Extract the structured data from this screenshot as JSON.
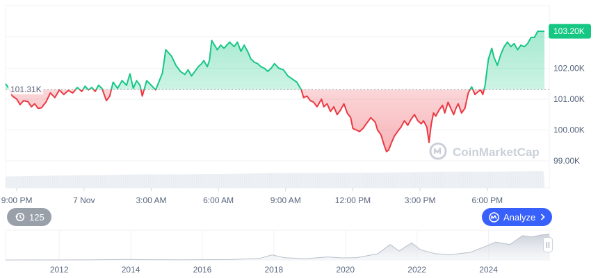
{
  "chart_data": {
    "type": "line",
    "colors": {
      "up": "#16c784",
      "down": "#ea3943",
      "axis_text": "#58667e",
      "grid": "#eff2f5",
      "brand": "#3861fb"
    },
    "baseline": {
      "value": 101.31,
      "label": "101.31K"
    },
    "current": {
      "value": 103.2,
      "label": "103.20K"
    },
    "ylim": [
      98.4,
      104.4
    ],
    "y_ticks": [
      {
        "value": 102.0,
        "label": "102.00K"
      },
      {
        "value": 101.0,
        "label": "101.00K"
      },
      {
        "value": 100.0,
        "label": "100.00K"
      },
      {
        "value": 99.0,
        "label": "99.00K"
      }
    ],
    "x_ticks": [
      {
        "t": 0.5,
        "label": "9:00 PM"
      },
      {
        "t": 3.5,
        "label": "7 Nov"
      },
      {
        "t": 6.5,
        "label": "3:00 AM"
      },
      {
        "t": 9.5,
        "label": "6:00 AM"
      },
      {
        "t": 12.5,
        "label": "9:00 AM"
      },
      {
        "t": 15.5,
        "label": "12:00 PM"
      },
      {
        "t": 18.5,
        "label": "3:00 PM"
      },
      {
        "t": 21.5,
        "label": "6:00 PM"
      }
    ],
    "x_range": [
      0,
      24.05
    ],
    "points": [
      [
        0.0,
        101.5
      ],
      [
        0.15,
        101.35
      ],
      [
        0.3,
        101.1
      ],
      [
        0.5,
        101.0
      ],
      [
        0.65,
        100.82
      ],
      [
        0.8,
        100.95
      ],
      [
        1.0,
        100.92
      ],
      [
        1.15,
        100.75
      ],
      [
        1.3,
        100.85
      ],
      [
        1.45,
        100.7
      ],
      [
        1.6,
        100.72
      ],
      [
        1.8,
        100.9
      ],
      [
        2.0,
        101.2
      ],
      [
        2.2,
        101.05
      ],
      [
        2.4,
        101.3
      ],
      [
        2.6,
        101.15
      ],
      [
        2.8,
        101.28
      ],
      [
        3.0,
        101.2
      ],
      [
        3.2,
        101.38
      ],
      [
        3.4,
        101.25
      ],
      [
        3.55,
        101.42
      ],
      [
        3.7,
        101.3
      ],
      [
        3.85,
        101.38
      ],
      [
        4.0,
        101.25
      ],
      [
        4.15,
        101.45
      ],
      [
        4.3,
        101.35
      ],
      [
        4.5,
        100.95
      ],
      [
        4.65,
        101.1
      ],
      [
        4.8,
        101.55
      ],
      [
        5.0,
        101.35
      ],
      [
        5.2,
        101.6
      ],
      [
        5.4,
        101.45
      ],
      [
        5.55,
        101.82
      ],
      [
        5.7,
        101.35
      ],
      [
        5.85,
        101.6
      ],
      [
        6.0,
        101.45
      ],
      [
        6.1,
        101.1
      ],
      [
        6.3,
        101.6
      ],
      [
        6.5,
        101.45
      ],
      [
        6.7,
        101.3
      ],
      [
        7.0,
        101.85
      ],
      [
        7.15,
        102.6
      ],
      [
        7.4,
        102.4
      ],
      [
        7.6,
        102.1
      ],
      [
        7.8,
        101.9
      ],
      [
        8.0,
        101.8
      ],
      [
        8.15,
        101.95
      ],
      [
        8.3,
        101.75
      ],
      [
        8.45,
        101.9
      ],
      [
        8.6,
        102.05
      ],
      [
        8.75,
        102.15
      ],
      [
        8.85,
        102.25
      ],
      [
        9.0,
        102.05
      ],
      [
        9.1,
        102.25
      ],
      [
        9.2,
        102.9
      ],
      [
        9.3,
        102.78
      ],
      [
        9.45,
        102.6
      ],
      [
        9.6,
        102.75
      ],
      [
        9.75,
        102.65
      ],
      [
        10.0,
        102.85
      ],
      [
        10.2,
        102.7
      ],
      [
        10.35,
        102.85
      ],
      [
        10.5,
        102.55
      ],
      [
        10.65,
        102.75
      ],
      [
        10.8,
        102.55
      ],
      [
        10.95,
        102.3
      ],
      [
        11.1,
        102.2
      ],
      [
        11.25,
        102.15
      ],
      [
        11.4,
        102.05
      ],
      [
        11.55,
        102.0
      ],
      [
        11.7,
        101.9
      ],
      [
        11.85,
        102.0
      ],
      [
        12.0,
        102.15
      ],
      [
        12.2,
        102.0
      ],
      [
        12.4,
        101.95
      ],
      [
        12.6,
        101.75
      ],
      [
        12.8,
        101.65
      ],
      [
        13.0,
        101.55
      ],
      [
        13.2,
        101.3
      ],
      [
        13.3,
        101.05
      ],
      [
        13.45,
        101.1
      ],
      [
        13.6,
        100.95
      ],
      [
        13.75,
        100.9
      ],
      [
        13.9,
        100.75
      ],
      [
        14.1,
        101.0
      ],
      [
        14.2,
        100.75
      ],
      [
        14.35,
        100.85
      ],
      [
        14.5,
        100.6
      ],
      [
        14.65,
        100.75
      ],
      [
        14.8,
        100.5
      ],
      [
        14.95,
        100.65
      ],
      [
        15.1,
        100.85
      ],
      [
        15.25,
        100.55
      ],
      [
        15.4,
        100.4
      ],
      [
        15.5,
        100.05
      ],
      [
        15.65,
        100.0
      ],
      [
        15.8,
        99.95
      ],
      [
        15.95,
        100.05
      ],
      [
        16.1,
        100.2
      ],
      [
        16.3,
        100.4
      ],
      [
        16.5,
        100.25
      ],
      [
        16.6,
        100.0
      ],
      [
        16.75,
        99.85
      ],
      [
        16.9,
        99.5
      ],
      [
        17.0,
        99.3
      ],
      [
        17.1,
        99.35
      ],
      [
        17.2,
        99.55
      ],
      [
        17.35,
        99.8
      ],
      [
        17.5,
        99.95
      ],
      [
        17.65,
        100.1
      ],
      [
        17.8,
        100.3
      ],
      [
        17.95,
        100.15
      ],
      [
        18.1,
        100.35
      ],
      [
        18.25,
        100.5
      ],
      [
        18.4,
        100.3
      ],
      [
        18.55,
        100.2
      ],
      [
        18.65,
        100.3
      ],
      [
        18.8,
        100.1
      ],
      [
        18.9,
        99.6
      ],
      [
        19.0,
        100.2
      ],
      [
        19.1,
        100.55
      ],
      [
        19.2,
        100.45
      ],
      [
        19.35,
        100.65
      ],
      [
        19.5,
        100.8
      ],
      [
        19.6,
        100.55
      ],
      [
        19.75,
        100.9
      ],
      [
        19.9,
        100.65
      ],
      [
        20.0,
        100.5
      ],
      [
        20.1,
        100.7
      ],
      [
        20.2,
        100.85
      ],
      [
        20.35,
        100.55
      ],
      [
        20.5,
        100.7
      ],
      [
        20.65,
        101.2
      ],
      [
        20.8,
        101.4
      ],
      [
        20.95,
        101.15
      ],
      [
        21.1,
        101.25
      ],
      [
        21.2,
        101.3
      ],
      [
        21.3,
        101.15
      ],
      [
        21.4,
        101.45
      ],
      [
        21.55,
        102.3
      ],
      [
        21.7,
        102.65
      ],
      [
        21.8,
        102.35
      ],
      [
        21.95,
        102.1
      ],
      [
        22.1,
        102.45
      ],
      [
        22.25,
        102.7
      ],
      [
        22.4,
        102.85
      ],
      [
        22.55,
        102.7
      ],
      [
        22.7,
        102.8
      ],
      [
        22.85,
        102.6
      ],
      [
        23.0,
        102.75
      ],
      [
        23.15,
        102.7
      ],
      [
        23.3,
        102.8
      ],
      [
        23.45,
        103.0
      ],
      [
        23.6,
        103.0
      ],
      [
        23.75,
        103.2
      ],
      [
        24.05,
        103.2
      ]
    ],
    "volume": [
      [
        0,
        0.42
      ],
      [
        2,
        0.45
      ],
      [
        4,
        0.47
      ],
      [
        6,
        0.5
      ],
      [
        8,
        0.5
      ],
      [
        10,
        0.52
      ],
      [
        12,
        0.55
      ],
      [
        14,
        0.55
      ],
      [
        16,
        0.56
      ],
      [
        18,
        0.58
      ],
      [
        20,
        0.6
      ],
      [
        22,
        0.6
      ],
      [
        24,
        0.62
      ],
      [
        24.05,
        0.3
      ]
    ],
    "overview": {
      "x_ticks": [
        {
          "year": 2012,
          "label": "2012"
        },
        {
          "year": 2014,
          "label": "2014"
        },
        {
          "year": 2016,
          "label": "2016"
        },
        {
          "year": 2018,
          "label": "2018"
        },
        {
          "year": 2020,
          "label": "2020"
        },
        {
          "year": 2022,
          "label": "2022"
        },
        {
          "year": 2024,
          "label": "2024"
        }
      ],
      "x_range": [
        2010.5,
        2025.7
      ],
      "series": [
        [
          2010.5,
          0.0
        ],
        [
          2013.0,
          0.005
        ],
        [
          2013.9,
          0.02
        ],
        [
          2014.5,
          0.01
        ],
        [
          2015.5,
          0.005
        ],
        [
          2016.8,
          0.015
        ],
        [
          2017.6,
          0.06
        ],
        [
          2017.95,
          0.2
        ],
        [
          2018.3,
          0.09
        ],
        [
          2018.9,
          0.05
        ],
        [
          2019.5,
          0.12
        ],
        [
          2019.9,
          0.08
        ],
        [
          2020.3,
          0.09
        ],
        [
          2020.9,
          0.24
        ],
        [
          2021.25,
          0.6
        ],
        [
          2021.5,
          0.35
        ],
        [
          2021.85,
          0.67
        ],
        [
          2022.1,
          0.4
        ],
        [
          2022.5,
          0.25
        ],
        [
          2022.9,
          0.2
        ],
        [
          2023.5,
          0.3
        ],
        [
          2023.95,
          0.55
        ],
        [
          2024.2,
          0.7
        ],
        [
          2024.6,
          0.6
        ],
        [
          2024.95,
          0.95
        ],
        [
          2025.2,
          0.9
        ],
        [
          2025.5,
          0.98
        ],
        [
          2025.7,
          1.0
        ]
      ]
    },
    "watermark": "CoinMarketCap",
    "badges": {
      "count": "125",
      "analyze": "Analyze"
    }
  }
}
